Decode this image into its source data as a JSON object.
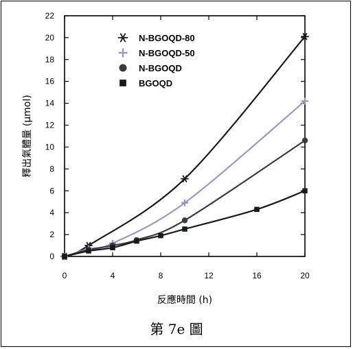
{
  "chart_data": {
    "type": "line",
    "xlabel": "反應時間 (h)",
    "ylabel": "釋出氣體量 (μmol)",
    "xlim": [
      0,
      20
    ],
    "ylim": [
      0,
      22
    ],
    "xticks": [
      0,
      4,
      8,
      12,
      16,
      20
    ],
    "yticks": [
      0,
      2,
      4,
      6,
      8,
      10,
      12,
      14,
      16,
      18,
      20,
      22
    ],
    "grid": false,
    "legend_position": "top-left",
    "series": [
      {
        "name": "N-BGOQD-80",
        "marker": "asterisk",
        "color": "#1a1a1a",
        "x": [
          0,
          2,
          10,
          20
        ],
        "y": [
          0,
          1.0,
          7.1,
          20.1
        ]
      },
      {
        "name": "N-BGOQD-50",
        "marker": "plus",
        "color": "#9a97c0",
        "x": [
          0,
          2,
          4,
          10,
          20
        ],
        "y": [
          0,
          0.7,
          1.2,
          4.9,
          14.2
        ]
      },
      {
        "name": "N-BGOQD",
        "marker": "circle",
        "color": "#3a3a44",
        "x": [
          0,
          2,
          4,
          6,
          10,
          20
        ],
        "y": [
          0,
          0.6,
          1.0,
          1.5,
          3.3,
          10.6
        ]
      },
      {
        "name": "BGOQD",
        "marker": "square",
        "color": "#1a1a1a",
        "x": [
          0,
          2,
          4,
          6,
          8,
          10,
          16,
          20
        ],
        "y": [
          0,
          0.5,
          0.8,
          1.4,
          1.9,
          2.5,
          4.3,
          6.0
        ]
      }
    ]
  },
  "caption": "第 7e 圖"
}
